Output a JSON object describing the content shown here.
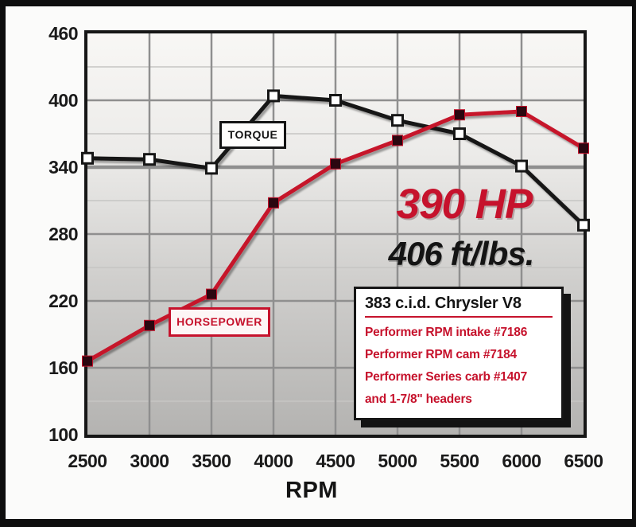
{
  "chart_data": {
    "type": "line",
    "x": [
      2500,
      3000,
      3500,
      4000,
      4500,
      5000,
      5500,
      6000,
      6500
    ],
    "series": [
      {
        "name": "TORQUE",
        "values": [
          348,
          347,
          339,
          404,
          400,
          382,
          370,
          341,
          288
        ],
        "color": "#161616",
        "marker": "open-square"
      },
      {
        "name": "HORSEPOWER",
        "values": [
          166,
          198,
          226,
          308,
          343,
          364,
          387,
          390,
          357
        ],
        "color": "#c6122c",
        "marker": "filled-square"
      }
    ],
    "xlabel": "RPM",
    "xlim": [
      2500,
      6500
    ],
    "ylim": [
      100,
      460
    ],
    "y_ticks": [
      100,
      160,
      220,
      280,
      340,
      400,
      460
    ],
    "y_minor_ticks": [
      130,
      190,
      250,
      310,
      370,
      430
    ],
    "grid": true,
    "legend_position": "inline-boxed-labels"
  },
  "annotations": {
    "torque_label": "TORQUE",
    "horsepower_label": "HORSEPOWER",
    "peak_hp": "390 HP",
    "peak_torque": "406 ft/lbs."
  },
  "info_box": {
    "title": "383 c.i.d. Chrysler V8",
    "lines": [
      "Performer RPM intake #7186",
      "Performer RPM cam #7184",
      "Performer Series carb #1407",
      "and 1-7/8\" headers"
    ]
  },
  "colors": {
    "accent_red": "#c6122c",
    "curve_black": "#161616",
    "hp_marker_dark": "#2b0710",
    "grid_major": "#8f8f8f",
    "grid_minor": "#c6c5c3"
  }
}
